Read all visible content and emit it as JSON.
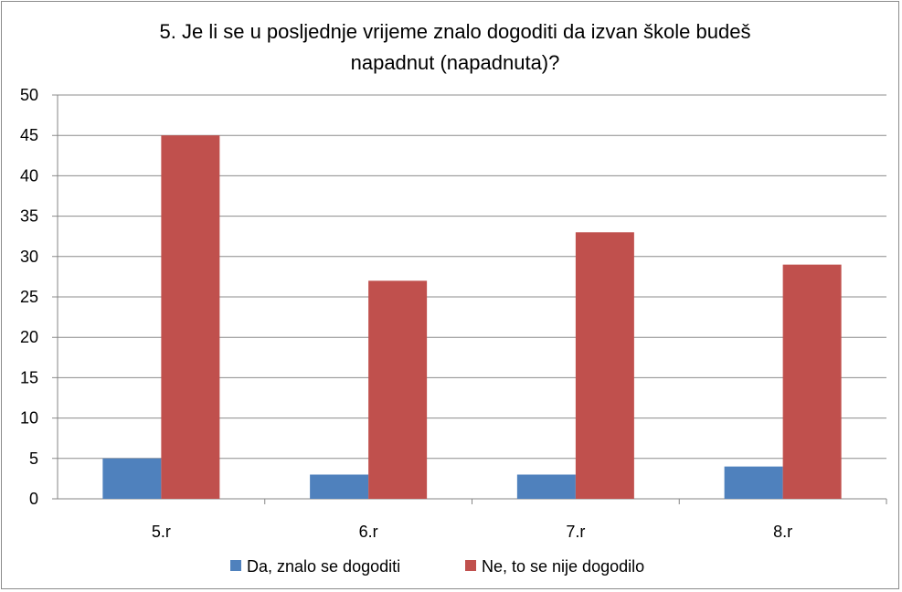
{
  "chart_data": {
    "type": "bar",
    "title_lines": [
      "5. Je li se u posljednje vrijeme znalo dogoditi da izvan škole budeš",
      "napadnut (napadnuta)?"
    ],
    "categories": [
      "5.r",
      "6.r",
      "7.r",
      "8.r"
    ],
    "series": [
      {
        "name": "Da, znalo se dogoditi",
        "values": [
          5,
          3,
          3,
          4
        ],
        "color": "#4f81bd"
      },
      {
        "name": "Ne, to se nije dogodilo",
        "values": [
          45,
          27,
          33,
          29
        ],
        "color": "#c0504d"
      }
    ],
    "ylim": [
      0,
      50
    ],
    "yticks": [
      "0",
      "5",
      "10",
      "15",
      "20",
      "25",
      "30",
      "35",
      "40",
      "45",
      "50"
    ],
    "grid": true,
    "legend": "bottom"
  }
}
